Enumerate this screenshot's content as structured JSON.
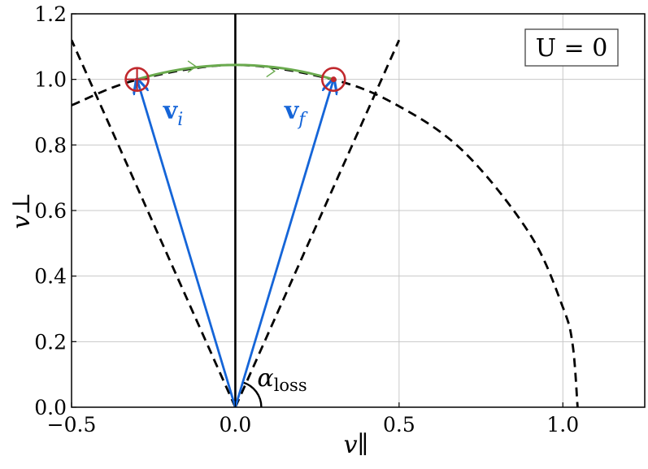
{
  "chart_data": {
    "type": "line",
    "title": "",
    "xlabel": "v∥",
    "ylabel": "v⊥",
    "xlim": [
      -0.5,
      1.25
    ],
    "ylim": [
      0.0,
      1.2
    ],
    "xticks": [
      -0.5,
      0.0,
      0.5,
      1.0
    ],
    "xtick_labels": [
      "−0.5",
      "0.0",
      "0.5",
      "1.0"
    ],
    "yticks": [
      0.0,
      0.2,
      0.4,
      0.6,
      0.8,
      1.0,
      1.2
    ],
    "ytick_labels": [
      "0.0",
      "0.2",
      "0.4",
      "0.6",
      "0.8",
      "1.0",
      "1.2"
    ],
    "grid": true,
    "box_label": "U = 0",
    "box_label_placement": "top-right",
    "series": [
      {
        "kind": "vertical-line",
        "style": "solid",
        "color": "#000000",
        "x": [
          0.0,
          0.0
        ],
        "y": [
          0.0,
          1.2
        ]
      },
      {
        "kind": "loss-cone-boundary",
        "style": "dashed",
        "color": "#000000",
        "x": [
          0.0,
          0.5
        ],
        "y": [
          0.0,
          1.12
        ]
      },
      {
        "kind": "loss-cone-boundary",
        "style": "dashed",
        "color": "#000000",
        "x": [
          0.0,
          -0.5
        ],
        "y": [
          0.0,
          1.12
        ]
      },
      {
        "kind": "energy-contour",
        "style": "dashed",
        "color": "#000000",
        "x": [
          -0.5,
          -0.3,
          0.0,
          0.3,
          0.5,
          0.7,
          0.9,
          1.0,
          1.03,
          1.045
        ],
        "y": [
          0.921,
          0.999,
          1.044,
          0.999,
          0.918,
          0.777,
          0.527,
          0.305,
          0.19,
          0.0
        ]
      },
      {
        "kind": "trajectory",
        "style": "solid",
        "color": "#6aaa4e",
        "x": [
          -0.3,
          -0.2,
          -0.1,
          0.0,
          0.1,
          0.2,
          0.3
        ],
        "y": [
          1.0,
          1.025,
          1.039,
          1.044,
          1.039,
          1.025,
          1.0
        ]
      }
    ],
    "vectors": [
      {
        "label_main": "v",
        "label_sub": "i",
        "color": "#1565d8",
        "from": [
          0.0,
          0.0
        ],
        "to": [
          -0.3,
          1.0
        ],
        "label_at": [
          -0.22,
          0.88
        ]
      },
      {
        "label_main": "v",
        "label_sub": "f",
        "color": "#1565d8",
        "from": [
          0.0,
          0.0
        ],
        "to": [
          0.3,
          1.0
        ],
        "label_at": [
          0.15,
          0.88
        ]
      }
    ],
    "markers": [
      {
        "kind": "circle-plus",
        "color": "#c0282d",
        "x": -0.3,
        "y": 1.0
      },
      {
        "kind": "circle-dot",
        "color": "#c0282d",
        "x": 0.3,
        "y": 1.0
      }
    ],
    "angle_annotation": {
      "main": "α",
      "sub": "loss",
      "vertex": [
        0.0,
        0.0
      ]
    },
    "colors": {
      "vector": "#1565d8",
      "trajectory": "#6aaa4e",
      "marker": "#c0282d",
      "grid": "#c8c8c8"
    }
  }
}
